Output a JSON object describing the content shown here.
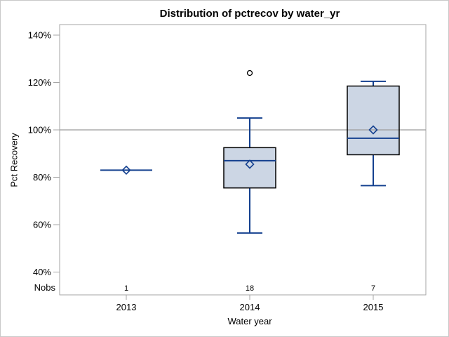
{
  "chart_data": {
    "type": "boxplot",
    "title": "Distribution of pctrecov by water_yr",
    "xlabel": "Water year",
    "ylabel": "Pct Recovery",
    "categories": [
      "2013",
      "2014",
      "2015"
    ],
    "nobs_label": "Nobs",
    "nobs": [
      "1",
      "18",
      "7"
    ],
    "y_ticks": [
      40,
      60,
      80,
      100,
      120,
      140
    ],
    "y_tick_suffix": "%",
    "ylim": [
      30,
      145
    ],
    "reference_line": 100,
    "grid": false,
    "legend": "none",
    "series": [
      {
        "category": "2013",
        "n": 1,
        "low": 83,
        "q1": 83,
        "median": 83,
        "q3": 83,
        "high": 83,
        "mean": 83,
        "outliers": []
      },
      {
        "category": "2014",
        "n": 18,
        "low": 56.5,
        "q1": 75.5,
        "median": 87,
        "q3": 92.5,
        "high": 105,
        "mean": 85.5,
        "outliers": [
          124
        ]
      },
      {
        "category": "2015",
        "n": 7,
        "low": 76.5,
        "q1": 89.5,
        "median": 96.5,
        "q3": 118.5,
        "high": 120.5,
        "mean": 100,
        "outliers": []
      }
    ]
  },
  "colors": {
    "box_fill": "#ccd6e4",
    "box_border": "#000000",
    "line": "#14408f",
    "frame": "#a6a6a6",
    "reference_line": "#9b9b9b",
    "outlier": "#000000",
    "text": "#000000",
    "background": "#ffffff",
    "page_border": "#c9c9c9"
  }
}
